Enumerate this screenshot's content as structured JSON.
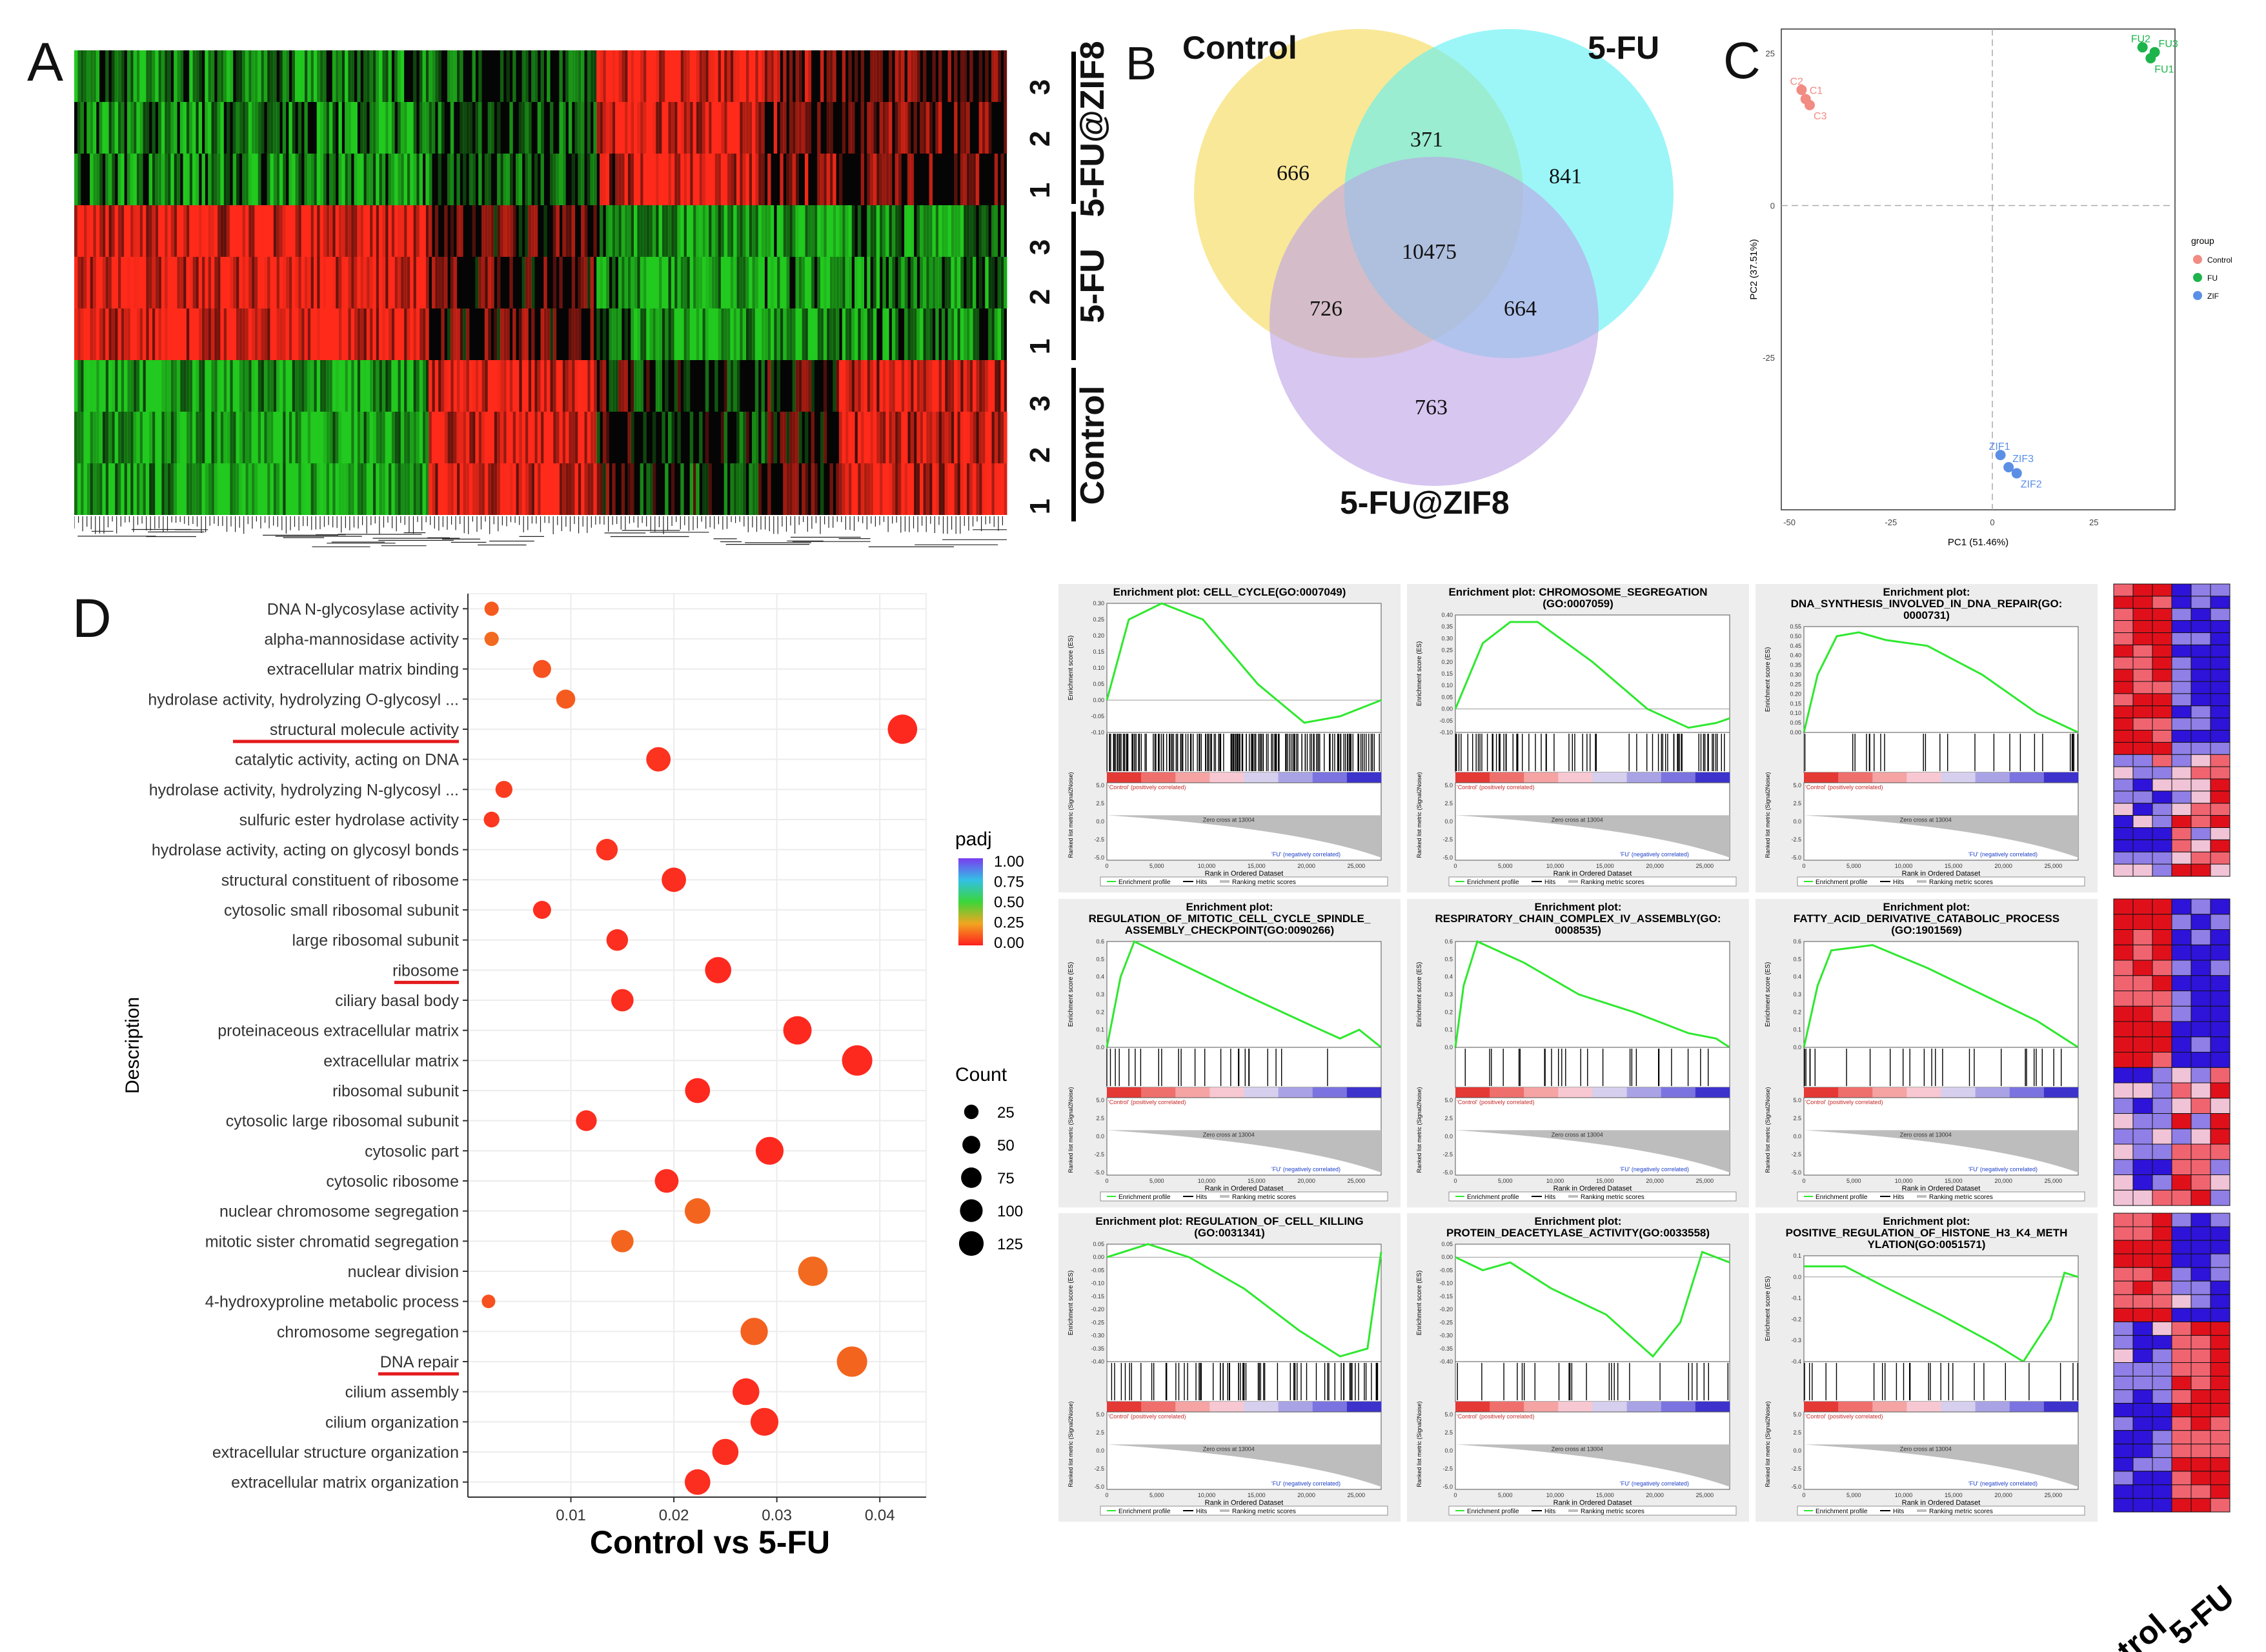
{
  "panels": {
    "A": "A",
    "B": "B",
    "C": "C",
    "D": "D"
  },
  "panel_a": {
    "groups": [
      {
        "name": "5-FU@ZIF8",
        "rows": [
          "3",
          "2",
          "1"
        ]
      },
      {
        "name": "5-FU",
        "rows": [
          "3",
          "2",
          "1"
        ]
      },
      {
        "name": "Control",
        "rows": [
          "3",
          "2",
          "1"
        ]
      }
    ],
    "colors": {
      "high": "#ff2a1a",
      "low": "#22c91f",
      "mid": "#050505"
    }
  },
  "venn": {
    "labels": {
      "control": "Control",
      "fu": "5-FU",
      "zif": "5-FU@ZIF8"
    },
    "counts": {
      "control_only": "666",
      "control_fu": "371",
      "fu_only": "841",
      "all": "10475",
      "control_zif": "726",
      "fu_zif": "664",
      "zif_only": "763"
    },
    "colors": {
      "control": "#f7e27a",
      "fu": "#5ff0f4",
      "zif": "#bda3e6"
    }
  },
  "pca": {
    "xlabel": "PC1 (51.46%)",
    "ylabel": "PC2 (37.51%)",
    "xticks": [
      "-50",
      "-25",
      "0",
      "25"
    ],
    "yticks": [
      "25",
      "0",
      "-25"
    ],
    "legend_title": "group",
    "groups": [
      {
        "name": "Control",
        "color": "#f28b82",
        "labels": [
          "C2",
          "C1",
          "C3"
        ],
        "points": [
          [
            -47,
            19
          ],
          [
            -46,
            17.5
          ],
          [
            -45,
            16.5
          ]
        ]
      },
      {
        "name": "FU",
        "color": "#1db44c",
        "labels": [
          "FU2",
          "FU3",
          "FU1"
        ],
        "points": [
          [
            37,
            26
          ],
          [
            40,
            25.2
          ],
          [
            39,
            24.2
          ]
        ]
      },
      {
        "name": "ZIF",
        "color": "#5b8fe6",
        "labels": [
          "ZIF1",
          "ZIF3",
          "ZIF2"
        ],
        "points": [
          [
            2,
            -41
          ],
          [
            4,
            -43
          ],
          [
            6,
            -44
          ]
        ]
      }
    ]
  },
  "chart_data": {
    "type": "scatter",
    "title": "Control vs 5-FU",
    "xlabel": "Control vs 5-FU",
    "ylabel": "Description",
    "xticks": [
      "0.01",
      "0.02",
      "0.03",
      "0.04"
    ],
    "xlim": [
      0.0,
      0.0445
    ],
    "legend": {
      "color_title": "padj",
      "color_ticks": [
        "1.00",
        "0.75",
        "0.50",
        "0.25",
        "0.00"
      ],
      "size_title": "Count",
      "size_ticks": [
        "25",
        "50",
        "75",
        "100",
        "125"
      ]
    },
    "points": [
      {
        "term": "DNA N-glycosylase activity",
        "x": 0.0023,
        "count": 10,
        "padj": 0.12
      },
      {
        "term": "alpha-mannosidase activity",
        "x": 0.0023,
        "count": 10,
        "padj": 0.15
      },
      {
        "term": "extracellular matrix binding",
        "x": 0.0072,
        "count": 25,
        "padj": 0.1
      },
      {
        "term": "hydrolase activity, hydrolyzing O-glycosyl ...",
        "x": 0.0095,
        "count": 30,
        "padj": 0.12
      },
      {
        "term": "structural molecule activity",
        "x": 0.0422,
        "count": 110,
        "padj": 0.02
      },
      {
        "term": "catalytic activity, acting on DNA",
        "x": 0.0185,
        "count": 65,
        "padj": 0.04
      },
      {
        "term": "hydrolase activity, hydrolyzing N-glycosyl ...",
        "x": 0.0035,
        "count": 20,
        "padj": 0.06
      },
      {
        "term": "sulfuric ester hydrolase activity",
        "x": 0.0023,
        "count": 15,
        "padj": 0.05
      },
      {
        "term": "hydrolase activity, acting on glycosyl bonds",
        "x": 0.0135,
        "count": 45,
        "padj": 0.04
      },
      {
        "term": "structural constituent of ribosome",
        "x": 0.02,
        "count": 65,
        "padj": 0.03
      },
      {
        "term": "cytosolic small ribosomal subunit",
        "x": 0.0072,
        "count": 25,
        "padj": 0.03
      },
      {
        "term": "large ribosomal subunit",
        "x": 0.0145,
        "count": 45,
        "padj": 0.03
      },
      {
        "term": "ribosome",
        "x": 0.0243,
        "count": 80,
        "padj": 0.02
      },
      {
        "term": "ciliary basal body",
        "x": 0.015,
        "count": 50,
        "padj": 0.03
      },
      {
        "term": "proteinaceous extracellular matrix",
        "x": 0.032,
        "count": 100,
        "padj": 0.02
      },
      {
        "term": "extracellular matrix",
        "x": 0.0378,
        "count": 120,
        "padj": 0.02
      },
      {
        "term": "ribosomal subunit",
        "x": 0.0223,
        "count": 70,
        "padj": 0.02
      },
      {
        "term": "cytosolic large ribosomal subunit",
        "x": 0.0115,
        "count": 40,
        "padj": 0.03
      },
      {
        "term": "cytosolic part",
        "x": 0.0293,
        "count": 95,
        "padj": 0.02
      },
      {
        "term": "cytosolic ribosome",
        "x": 0.0193,
        "count": 60,
        "padj": 0.03
      },
      {
        "term": "nuclear chromosome segregation",
        "x": 0.0223,
        "count": 75,
        "padj": 0.14
      },
      {
        "term": "mitotic sister chromatid segregation",
        "x": 0.015,
        "count": 50,
        "padj": 0.14
      },
      {
        "term": "nuclear division",
        "x": 0.0335,
        "count": 110,
        "padj": 0.15
      },
      {
        "term": "4-hydroxyproline metabolic process",
        "x": 0.002,
        "count": 8,
        "padj": 0.1
      },
      {
        "term": "chromosome segregation",
        "x": 0.0278,
        "count": 90,
        "padj": 0.13
      },
      {
        "term": "DNA repair",
        "x": 0.0373,
        "count": 120,
        "padj": 0.14
      },
      {
        "term": "cilium assembly",
        "x": 0.027,
        "count": 85,
        "padj": 0.03
      },
      {
        "term": "cilium organization",
        "x": 0.0288,
        "count": 95,
        "padj": 0.03
      },
      {
        "term": "extracellular structure organization",
        "x": 0.025,
        "count": 80,
        "padj": 0.03
      },
      {
        "term": "extracellular matrix organization",
        "x": 0.0223,
        "count": 75,
        "padj": 0.03
      }
    ],
    "underlined": [
      "structural molecule activity",
      "ribosome",
      "DNA repair"
    ]
  },
  "gsea": {
    "plots": [
      {
        "title": [
          "Enrichment plot: CELL_CYCLE(GO:0007049)"
        ],
        "yticks": [
          "0.30",
          "0.25",
          "0.20",
          "0.15",
          "0.10",
          "0.05",
          "0.00",
          "-0.05",
          "-0.10"
        ],
        "curve": [
          [
            0,
            0.0
          ],
          [
            0.08,
            0.25
          ],
          [
            0.2,
            0.3
          ],
          [
            0.35,
            0.25
          ],
          [
            0.55,
            0.05
          ],
          [
            0.72,
            -0.07
          ],
          [
            0.85,
            -0.05
          ],
          [
            1,
            0.0
          ]
        ],
        "ymin": -0.1,
        "ymax": 0.3,
        "hits": "dense"
      },
      {
        "title": [
          "Enrichment plot: CHROMOSOME_SEGREGATION",
          "(GO:0007059)"
        ],
        "yticks": [
          "0.40",
          "0.35",
          "0.30",
          "0.25",
          "0.20",
          "0.15",
          "0.10",
          "0.05",
          "0.00",
          "-0.05",
          "-0.10"
        ],
        "curve": [
          [
            0,
            0.0
          ],
          [
            0.1,
            0.28
          ],
          [
            0.2,
            0.37
          ],
          [
            0.3,
            0.37
          ],
          [
            0.5,
            0.2
          ],
          [
            0.7,
            0.0
          ],
          [
            0.85,
            -0.08
          ],
          [
            0.95,
            -0.06
          ],
          [
            1,
            -0.04
          ]
        ],
        "ymin": -0.1,
        "ymax": 0.4,
        "hits": "medium"
      },
      {
        "title": [
          "Enrichment plot:",
          "DNA_SYNTHESIS_INVOLVED_IN_DNA_REPAIR(GO:",
          "0000731)"
        ],
        "yticks": [
          "0.55",
          "0.50",
          "0.45",
          "0.40",
          "0.35",
          "0.30",
          "0.25",
          "0.20",
          "0.15",
          "0.10",
          "0.05",
          "0.00"
        ],
        "curve": [
          [
            0,
            0.0
          ],
          [
            0.05,
            0.3
          ],
          [
            0.12,
            0.5
          ],
          [
            0.2,
            0.52
          ],
          [
            0.3,
            0.48
          ],
          [
            0.45,
            0.45
          ],
          [
            0.65,
            0.3
          ],
          [
            0.85,
            0.1
          ],
          [
            1,
            0.0
          ]
        ],
        "ymin": 0.0,
        "ymax": 0.55,
        "hits": "sparse"
      },
      {
        "title": [
          "Enrichment plot:",
          "REGULATION_OF_MITOTIC_CELL_CYCLE_SPINDLE_",
          "ASSEMBLY_CHECKPOINT(GO:0090266)"
        ],
        "yticks": [
          "0.6",
          "0.5",
          "0.4",
          "0.3",
          "0.2",
          "0.1",
          "0.0"
        ],
        "curve": [
          [
            0,
            0.0
          ],
          [
            0.05,
            0.4
          ],
          [
            0.1,
            0.6
          ],
          [
            0.3,
            0.45
          ],
          [
            0.5,
            0.3
          ],
          [
            0.75,
            0.12
          ],
          [
            0.85,
            0.05
          ],
          [
            0.92,
            0.1
          ],
          [
            1,
            0.0
          ]
        ],
        "ymin": 0.0,
        "ymax": 0.6,
        "hits": "sparse"
      },
      {
        "title": [
          "Enrichment plot:",
          "RESPIRATORY_CHAIN_COMPLEX_IV_ASSEMBLY(GO:",
          "0008535)"
        ],
        "yticks": [
          "0.6",
          "0.5",
          "0.4",
          "0.3",
          "0.2",
          "0.1",
          "0.0"
        ],
        "curve": [
          [
            0,
            0.0
          ],
          [
            0.03,
            0.35
          ],
          [
            0.08,
            0.6
          ],
          [
            0.25,
            0.48
          ],
          [
            0.45,
            0.3
          ],
          [
            0.65,
            0.2
          ],
          [
            0.85,
            0.08
          ],
          [
            0.95,
            0.05
          ],
          [
            1,
            0.0
          ]
        ],
        "ymin": 0.0,
        "ymax": 0.6,
        "hits": "sparse"
      },
      {
        "title": [
          "Enrichment plot:",
          "FATTY_ACID_DERIVATIVE_CATABOLIC_PROCESS",
          "(GO:1901569)"
        ],
        "yticks": [
          "0.6",
          "0.5",
          "0.4",
          "0.3",
          "0.2",
          "0.1",
          "0.0"
        ],
        "curve": [
          [
            0,
            0.0
          ],
          [
            0.05,
            0.35
          ],
          [
            0.1,
            0.55
          ],
          [
            0.25,
            0.58
          ],
          [
            0.45,
            0.45
          ],
          [
            0.65,
            0.3
          ],
          [
            0.85,
            0.15
          ],
          [
            1,
            0.0
          ]
        ],
        "ymin": 0.0,
        "ymax": 0.6,
        "hits": "sparse"
      },
      {
        "title": [
          "Enrichment plot: REGULATION_OF_CELL_KILLING",
          "(GO:0031341)"
        ],
        "yticks": [
          "0.05",
          "0.00",
          "-0.05",
          "-0.10",
          "-0.15",
          "-0.20",
          "-0.25",
          "-0.30",
          "-0.35",
          "-0.40"
        ],
        "curve": [
          [
            0,
            0.0
          ],
          [
            0.15,
            0.05
          ],
          [
            0.3,
            0.0
          ],
          [
            0.5,
            -0.12
          ],
          [
            0.7,
            -0.28
          ],
          [
            0.85,
            -0.38
          ],
          [
            0.95,
            -0.35
          ],
          [
            1,
            0.02
          ]
        ],
        "ymin": -0.4,
        "ymax": 0.05,
        "hits": "medium"
      },
      {
        "title": [
          "Enrichment plot:",
          "PROTEIN_DEACETYLASE_ACTIVITY(GO:0033558)"
        ],
        "yticks": [
          "0.05",
          "0.00",
          "-0.05",
          "-0.10",
          "-0.15",
          "-0.20",
          "-0.25",
          "-0.30",
          "-0.35",
          "-0.40"
        ],
        "curve": [
          [
            0,
            0.0
          ],
          [
            0.1,
            -0.05
          ],
          [
            0.2,
            -0.02
          ],
          [
            0.35,
            -0.12
          ],
          [
            0.55,
            -0.22
          ],
          [
            0.72,
            -0.38
          ],
          [
            0.82,
            -0.25
          ],
          [
            0.9,
            0.02
          ],
          [
            1,
            -0.02
          ]
        ],
        "ymin": -0.4,
        "ymax": 0.05,
        "hits": "sparse"
      },
      {
        "title": [
          "Enrichment plot:",
          "POSITIVE_REGULATION_OF_HISTONE_H3_K4_METH",
          "YLATION(GO:0051571)"
        ],
        "yticks": [
          "0.1",
          "0.0",
          "-0.1",
          "-0.2",
          "-0.3",
          "-0.4"
        ],
        "curve": [
          [
            0,
            0.05
          ],
          [
            0.15,
            0.05
          ],
          [
            0.3,
            -0.05
          ],
          [
            0.5,
            -0.18
          ],
          [
            0.7,
            -0.32
          ],
          [
            0.8,
            -0.4
          ],
          [
            0.9,
            -0.2
          ],
          [
            0.95,
            0.02
          ],
          [
            1,
            0.0
          ]
        ],
        "ymin": -0.4,
        "ymax": 0.1,
        "hits": "sparse"
      }
    ],
    "ylabel_top": "Enrichment score (ES)",
    "ylabel_bottom": "Ranked list metric (Signal2Noise)",
    "xlabel": "Rank in Ordered Dataset",
    "xticks": [
      "0",
      "5,000",
      "10,000",
      "15,000",
      "20,000",
      "25,000"
    ],
    "metric_ticks": [
      "5.0",
      "2.5",
      "0.0",
      "-2.5",
      "-5.0"
    ],
    "pos_label": "'Control' (positively correlated)",
    "neg_label": "'FU' (negatively correlated)",
    "zero_label": "Zero cross at 13004",
    "legend": [
      "Enrichment profile",
      "Hits",
      "Ranking metric scores"
    ]
  },
  "heat_labels": {
    "control": "Control",
    "fu": "5-FU"
  }
}
